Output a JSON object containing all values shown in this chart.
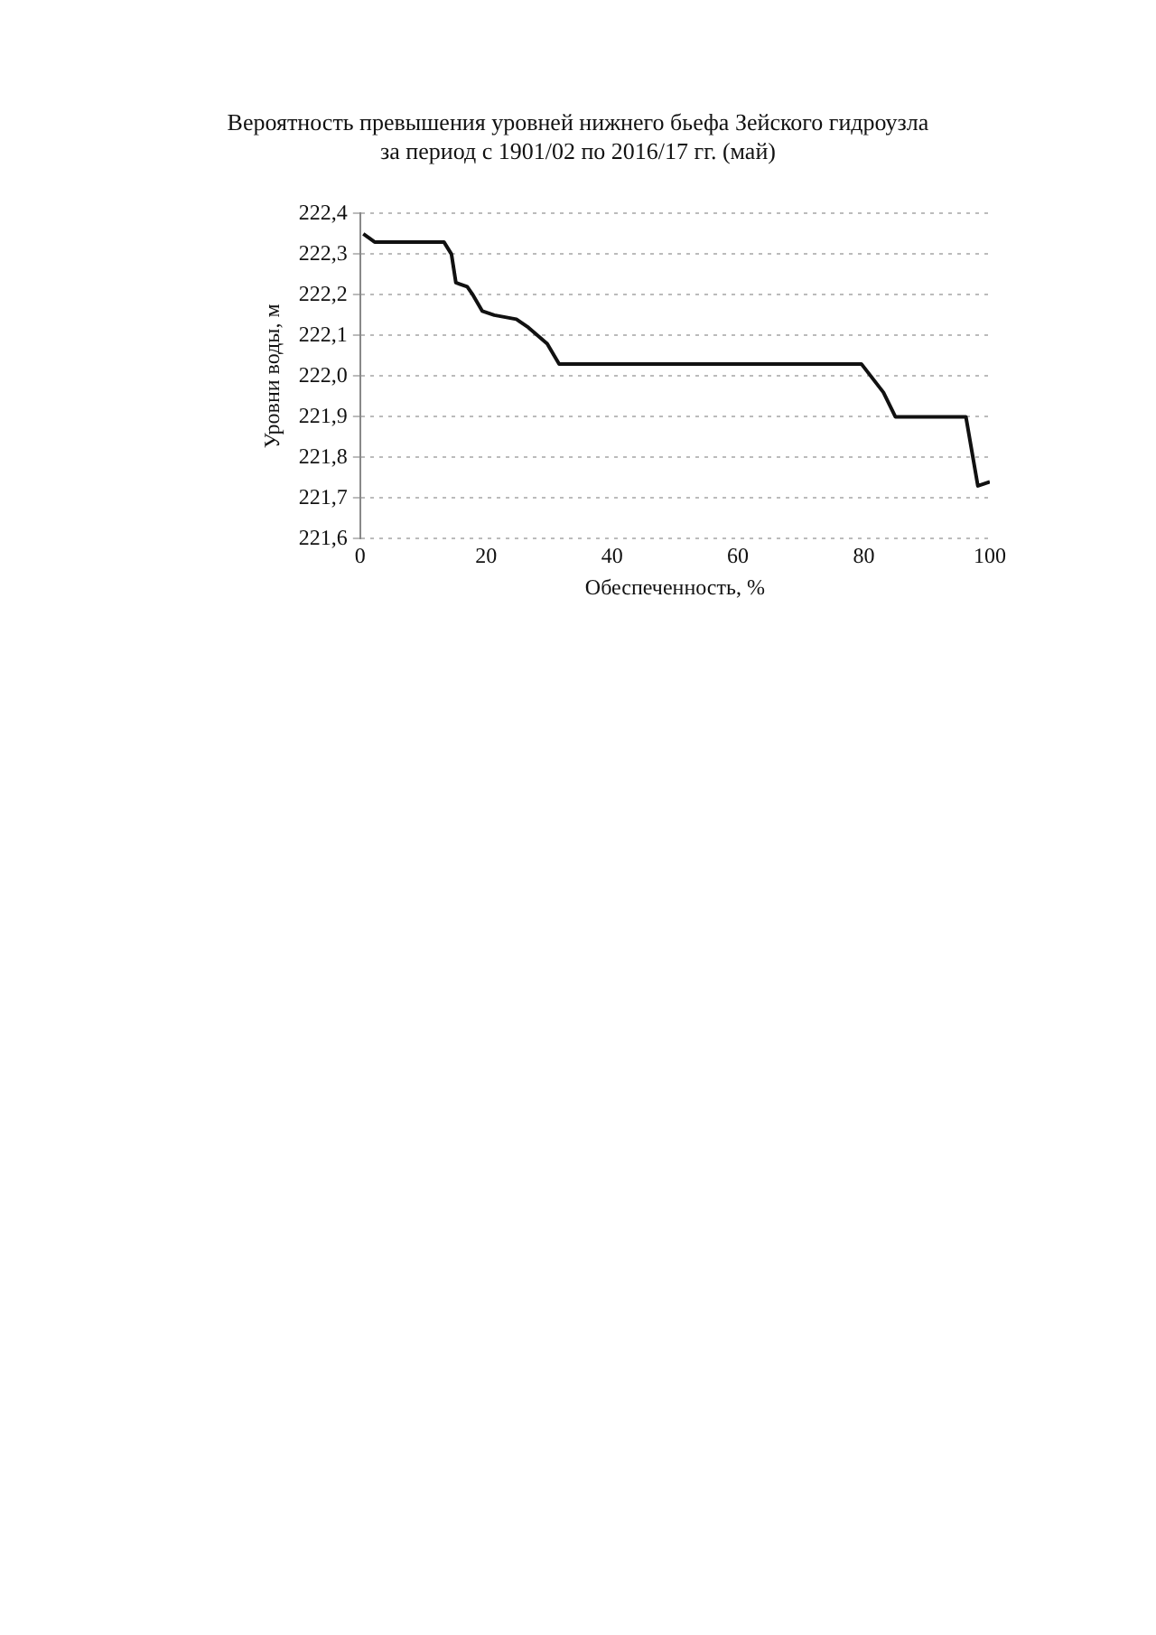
{
  "chart_data": {
    "type": "line",
    "title": "Вероятность превышения уровней нижнего бьефа Зейского гидроузла\nза период с 1901/02 по 2016/17 гг. (май)",
    "xlabel": "Обеспеченность, %",
    "ylabel": "Уровни воды, м",
    "x": [
      0.5,
      2.3,
      13.3,
      14.5,
      15.2,
      17,
      17.9,
      19.4,
      21.3,
      24.8,
      26.7,
      28.2,
      29.7,
      31.6,
      79.6,
      81.1,
      83.1,
      85,
      96.2,
      98.1,
      100
    ],
    "series": [
      {
        "color": "#111111",
        "values": [
          222.35,
          222.33,
          222.33,
          222.3,
          222.23,
          222.22,
          222.2,
          222.16,
          222.15,
          222.14,
          222.12,
          222.1,
          222.08,
          222.03,
          222.03,
          222.0,
          221.96,
          221.9,
          221.9,
          221.73,
          221.74
        ]
      }
    ],
    "xlim": [
      0,
      100
    ],
    "xticks": [
      0,
      20,
      40,
      60,
      80,
      100
    ],
    "ylim": [
      221.6,
      222.4
    ],
    "yticks": [
      {
        "value": 221.6,
        "label": "221,6"
      },
      {
        "value": 221.7,
        "label": "221,7"
      },
      {
        "value": 221.8,
        "label": "221,8"
      },
      {
        "value": 221.9,
        "label": "221,9"
      },
      {
        "value": 222.0,
        "label": "222,0"
      },
      {
        "value": 222.1,
        "label": "222,1"
      },
      {
        "value": 222.2,
        "label": "222,2"
      },
      {
        "value": 222.3,
        "label": "222,3"
      },
      {
        "value": 222.4,
        "label": "222,4"
      }
    ],
    "grid": "y",
    "legend": false,
    "marker": "none",
    "line_style": "solid"
  }
}
